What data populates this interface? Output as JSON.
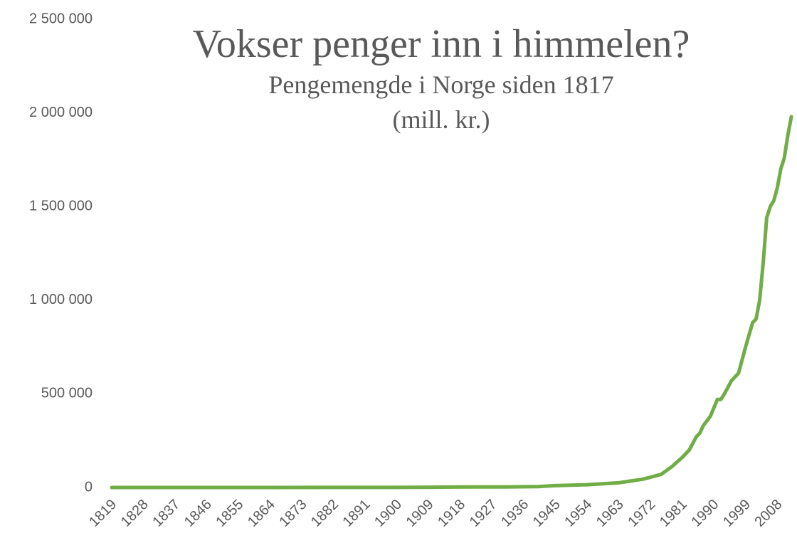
{
  "chart_data": {
    "type": "line",
    "title": "Vokser penger inn i himmelen?",
    "subtitle": "Pengemengde i Norge siden 1817",
    "subtitle2": "(mill. kr.)",
    "x": [
      1819,
      1850,
      1880,
      1900,
      1910,
      1920,
      1930,
      1940,
      1945,
      1954,
      1963,
      1970,
      1975,
      1978,
      1981,
      1983,
      1985,
      1986,
      1987,
      1989,
      1991,
      1992,
      1993,
      1995,
      1997,
      1999,
      2001,
      2002,
      2003,
      2004,
      2005,
      2006,
      2007,
      2008,
      2009,
      2010,
      2011,
      2012
    ],
    "series": [
      {
        "name": "Pengemengde",
        "color": "#70ad47",
        "values": [
          50,
          100,
          300,
          500,
          1500,
          3000,
          2500,
          5000,
          10000,
          15000,
          25000,
          45000,
          70000,
          110000,
          160000,
          200000,
          270000,
          290000,
          330000,
          380000,
          470000,
          470000,
          500000,
          570000,
          610000,
          750000,
          880000,
          900000,
          1000000,
          1200000,
          1440000,
          1500000,
          1530000,
          1600000,
          1700000,
          1760000,
          1880000,
          1980000
        ]
      }
    ],
    "xlim": [
      1819,
      2013
    ],
    "xticks": [
      1819,
      1828,
      1837,
      1846,
      1855,
      1864,
      1873,
      1882,
      1891,
      1900,
      1909,
      1918,
      1927,
      1936,
      1945,
      1954,
      1963,
      1972,
      1981,
      1990,
      1999,
      2008
    ],
    "ylim": [
      0,
      2500000
    ],
    "yticks": [
      0,
      {
        "value": 500000,
        "label": "500 000"
      },
      {
        "value": 1000000,
        "label": "1 000 000"
      },
      {
        "value": 1500000,
        "label": "1 500 000"
      },
      {
        "value": 2000000,
        "label": "2 000 000"
      },
      {
        "value": 2500000,
        "label": "2 500 000"
      }
    ],
    "grid": false
  }
}
